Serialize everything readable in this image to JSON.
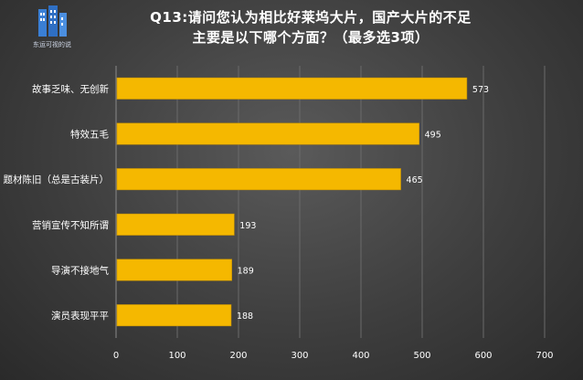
{
  "header": {
    "title_line1": "Q13:请问您认为相比好莱坞大片，国产大片的不足",
    "title_line2": "主要是以下哪个方面？（最多选3项）",
    "logo_text": "东运可视的说"
  },
  "colors": {
    "bar": "#f5b800",
    "bar_stroke": "#c99400",
    "text": "#ffffff",
    "grid": "#6a6a6a",
    "axis": "#8a8a8a"
  },
  "chart_data": {
    "type": "bar",
    "orientation": "horizontal",
    "title": "Q13:请问您认为相比好莱坞大片，国产大片的不足主要是以下哪个方面？（最多选3项）",
    "categories": [
      "故事乏味、无创新",
      "特效五毛",
      "题材陈旧（总是古装片）",
      "营销宣传不知所谓",
      "导演不接地气",
      "演员表现平平"
    ],
    "values": [
      573,
      495,
      465,
      193,
      189,
      188
    ],
    "xlim": [
      0,
      700
    ],
    "xticks": [
      0,
      100,
      200,
      300,
      400,
      500,
      600,
      700
    ],
    "xlabel": "",
    "ylabel": "",
    "data_labels": true,
    "grid": "vertical",
    "legend": "none"
  }
}
